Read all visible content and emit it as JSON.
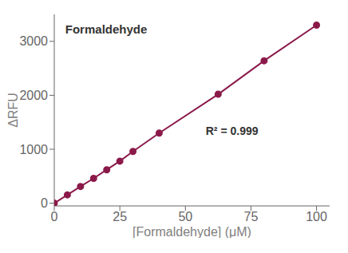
{
  "chart_data": {
    "type": "line",
    "title": "Formaldehyde",
    "xlabel": "[Formaldehyde] (μM)",
    "ylabel": "ΔRFU",
    "annotations": [
      {
        "text": "R² = 0.999"
      }
    ],
    "x": [
      0,
      5,
      10,
      15,
      20,
      25,
      30,
      40,
      62.5,
      80,
      100
    ],
    "values": [
      0,
      155,
      310,
      460,
      620,
      780,
      960,
      1300,
      2020,
      2640,
      3300
    ],
    "color": "#8B1A4A",
    "marker": "circle",
    "line_style": "solid",
    "xlim": [
      0,
      105
    ],
    "ylim": [
      -50,
      3500
    ],
    "xticks": [
      0,
      25,
      50,
      75,
      100
    ],
    "yticks": [
      0,
      1000,
      2000,
      3000
    ],
    "grid": false
  }
}
